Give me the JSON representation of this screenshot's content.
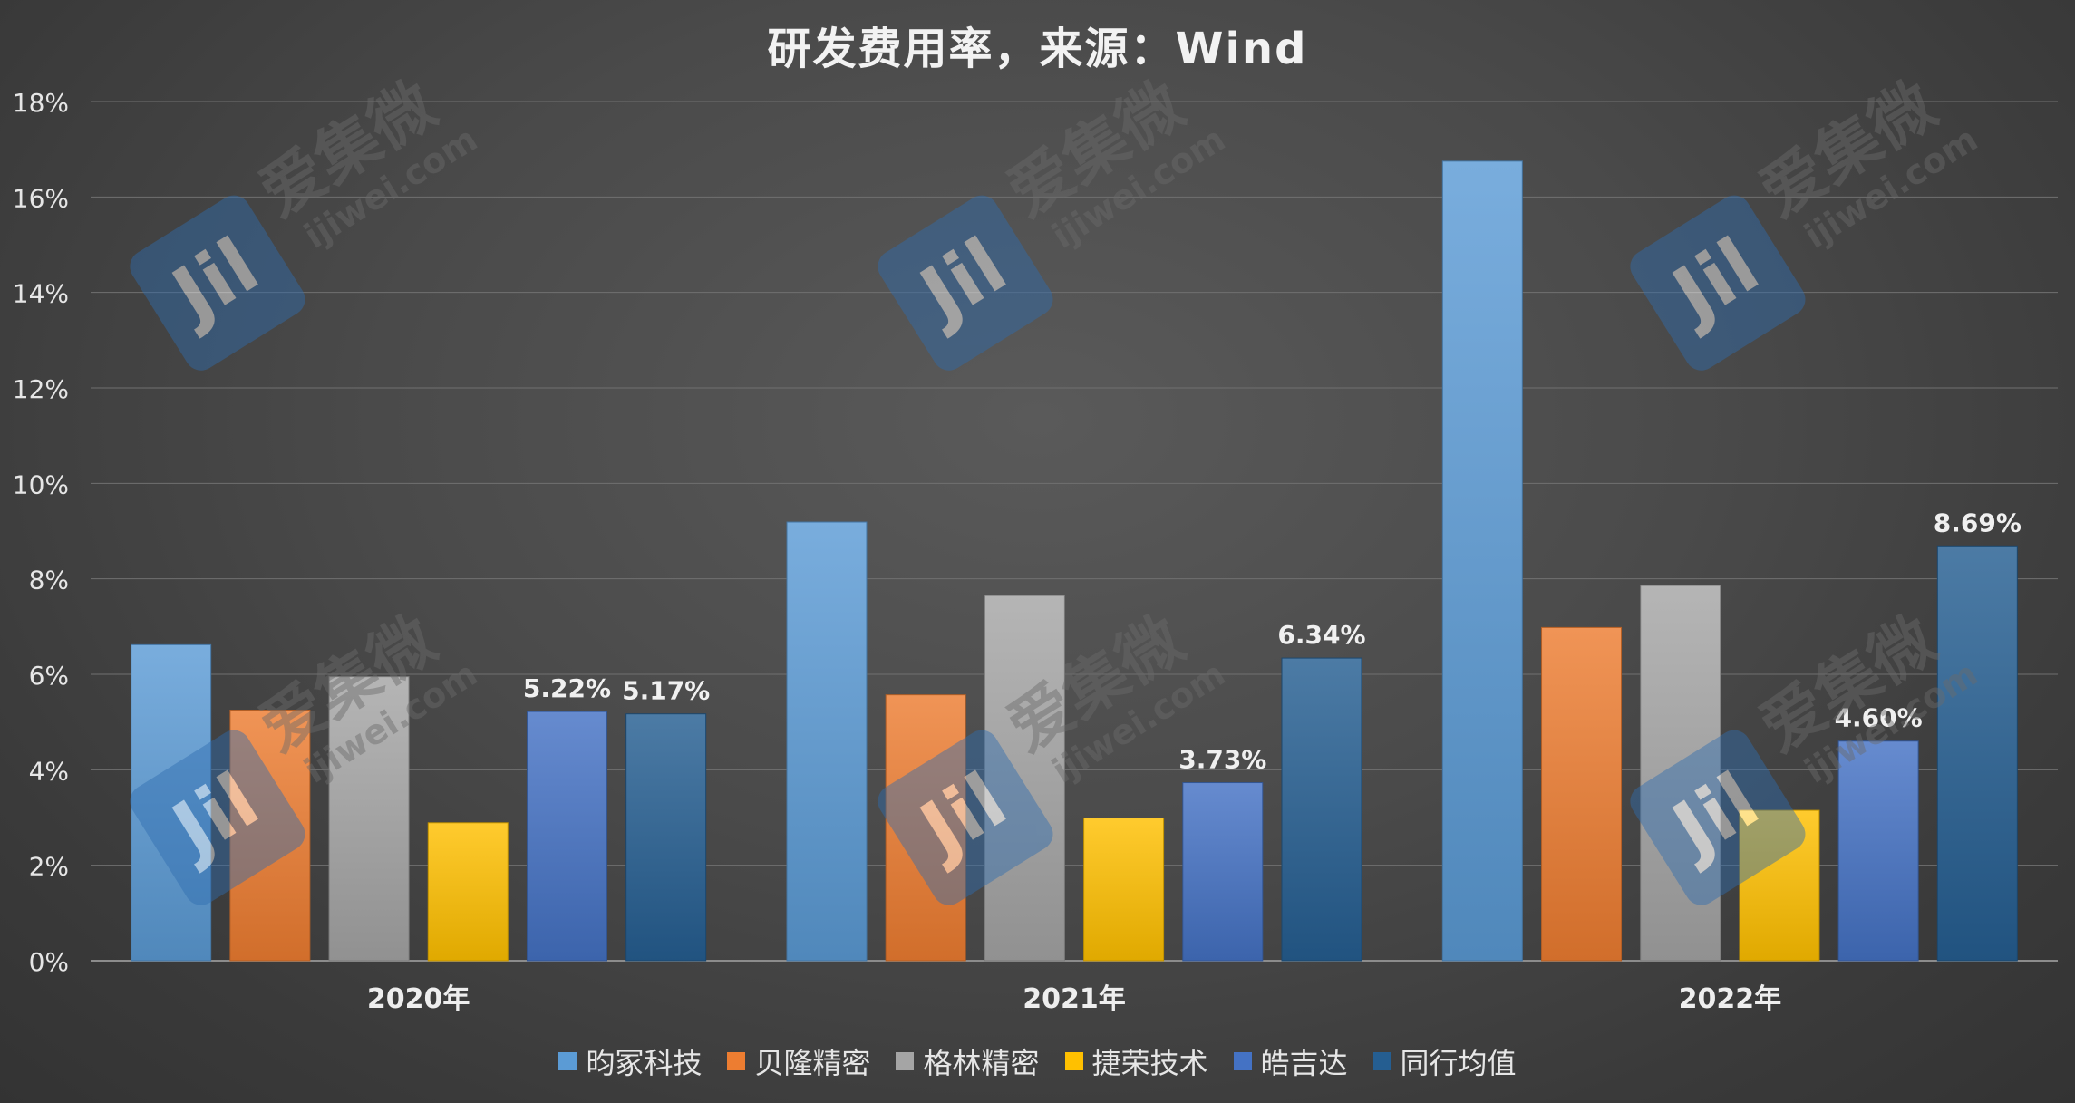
{
  "chart_data": {
    "type": "bar",
    "title": "研发费用率，来源：Wind",
    "categories": [
      "2020年",
      "2021年",
      "2022年"
    ],
    "yticks": [
      "0%",
      "2%",
      "4%",
      "6%",
      "8%",
      "10%",
      "12%",
      "14%",
      "16%",
      "18%"
    ],
    "ylim": [
      0,
      18
    ],
    "grid": true,
    "legend_position": "bottom",
    "series": [
      {
        "name": "昀冢科技",
        "color": "#5b9bd5",
        "values": [
          6.62,
          9.19,
          16.75
        ],
        "labels": [
          "",
          "",
          ""
        ]
      },
      {
        "name": "贝隆精密",
        "color": "#ed7d31",
        "values": [
          5.25,
          5.57,
          6.98
        ],
        "labels": [
          "",
          "",
          ""
        ]
      },
      {
        "name": "格林精密",
        "color": "#a5a5a5",
        "values": [
          5.95,
          7.65,
          7.86
        ],
        "labels": [
          "",
          "",
          ""
        ]
      },
      {
        "name": "捷荣技术",
        "color": "#ffc000",
        "values": [
          2.89,
          2.99,
          3.15
        ],
        "labels": [
          "",
          "",
          ""
        ]
      },
      {
        "name": "皓吉达",
        "color": "#4472c4",
        "values": [
          5.22,
          3.73,
          4.6
        ],
        "labels": [
          "5.22%",
          "3.73%",
          "4.60%"
        ]
      },
      {
        "name": "同行均值",
        "color": "#255e91",
        "values": [
          5.17,
          6.34,
          8.69
        ],
        "labels": [
          "5.17%",
          "6.34%",
          "8.69%"
        ]
      }
    ]
  },
  "watermark": {
    "cn": "爱集微",
    "en": "ijiwei.com",
    "logo": "Jil"
  }
}
